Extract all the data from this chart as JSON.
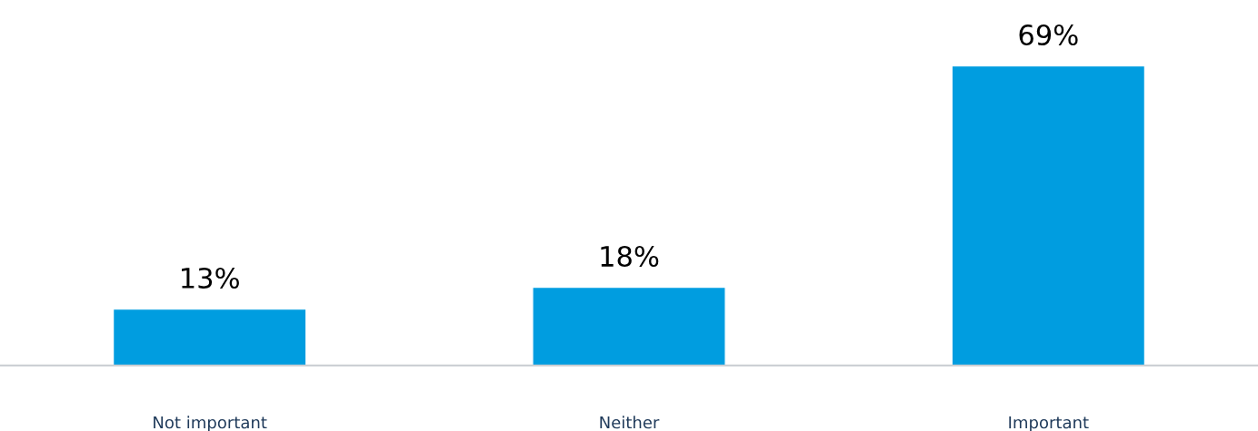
{
  "chart_data": {
    "type": "bar",
    "categories": [
      "Not important",
      "Neither",
      "Important"
    ],
    "values": [
      13,
      18,
      69
    ],
    "value_labels": [
      "13%",
      "18%",
      "69%"
    ],
    "color": "#009de0",
    "grid": false,
    "legend": false
  }
}
